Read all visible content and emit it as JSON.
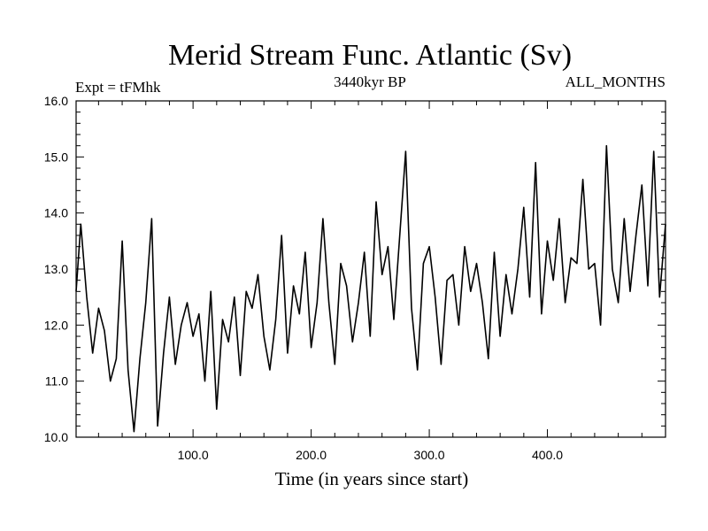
{
  "chart_data": {
    "type": "line",
    "title": "Merid Stream Func. Atlantic (Sv)",
    "subtitle_left": "Expt = tFMhk",
    "subtitle_center": "3440kyr BP",
    "subtitle_right": "ALL_MONTHS",
    "xlabel": "Time (in years since start)",
    "ylabel": "",
    "xlim": [
      1,
      500
    ],
    "ylim": [
      10.0,
      16.0
    ],
    "x_ticks": [
      100,
      200,
      300,
      400
    ],
    "x_tick_labels": [
      "100.0",
      "200.0",
      "300.0",
      "400.0"
    ],
    "y_ticks": [
      10,
      11,
      12,
      13,
      14,
      15,
      16
    ],
    "y_tick_labels": [
      "10.0",
      "11.0",
      "12.0",
      "13.0",
      "14.0",
      "15.0",
      "16.0"
    ],
    "grid": false,
    "series": [
      {
        "name": "Merid Stream Func. Atlantic",
        "x": [
          1,
          5,
          10,
          15,
          20,
          25,
          30,
          35,
          40,
          45,
          50,
          55,
          60,
          65,
          70,
          75,
          80,
          85,
          90,
          95,
          100,
          105,
          110,
          115,
          120,
          125,
          130,
          135,
          140,
          145,
          150,
          155,
          160,
          165,
          170,
          175,
          180,
          185,
          190,
          195,
          200,
          205,
          210,
          215,
          220,
          225,
          230,
          235,
          240,
          245,
          250,
          255,
          260,
          265,
          270,
          275,
          280,
          285,
          290,
          295,
          300,
          305,
          310,
          315,
          320,
          325,
          330,
          335,
          340,
          345,
          350,
          355,
          360,
          365,
          370,
          375,
          380,
          385,
          390,
          395,
          400,
          405,
          410,
          415,
          420,
          425,
          430,
          435,
          440,
          445,
          450,
          455,
          460,
          465,
          470,
          475,
          480,
          485,
          490,
          495,
          500
        ],
        "values": [
          12.6,
          13.8,
          12.5,
          11.5,
          12.3,
          11.9,
          11.0,
          11.4,
          13.5,
          11.2,
          10.1,
          11.4,
          12.4,
          13.9,
          10.2,
          11.5,
          12.5,
          11.3,
          12.0,
          12.4,
          11.8,
          12.2,
          11.0,
          12.6,
          10.5,
          12.1,
          11.7,
          12.5,
          11.1,
          12.6,
          12.3,
          12.9,
          11.8,
          11.2,
          12.1,
          13.6,
          11.5,
          12.7,
          12.2,
          13.3,
          11.6,
          12.4,
          13.9,
          12.4,
          11.3,
          13.1,
          12.7,
          11.7,
          12.4,
          13.3,
          11.8,
          14.2,
          12.9,
          13.4,
          12.1,
          13.6,
          15.1,
          12.3,
          11.2,
          13.1,
          13.4,
          12.5,
          11.3,
          12.8,
          12.9,
          12.0,
          13.4,
          12.6,
          13.1,
          12.4,
          11.4,
          13.3,
          11.8,
          12.9,
          12.2,
          13.0,
          14.1,
          12.5,
          14.9,
          12.2,
          13.5,
          12.8,
          13.9,
          12.4,
          13.2,
          13.1,
          14.6,
          13.0,
          13.1,
          12.0,
          15.2,
          13.0,
          12.4,
          13.9,
          12.6,
          13.6,
          14.5,
          12.7,
          15.1,
          12.5,
          13.8
        ]
      }
    ]
  }
}
